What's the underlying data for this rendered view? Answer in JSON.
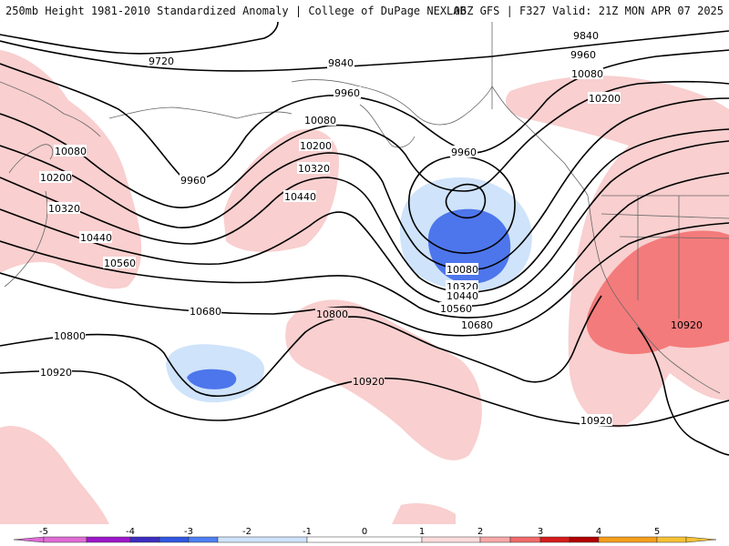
{
  "header": {
    "left_text": "250mb Height 1981-2010 Standardized Anomaly | College of DuPage NEXLAB",
    "right_text": "06Z GFS | F327 Valid: 21Z MON APR 07 2025"
  },
  "map": {
    "contour_labels": [
      "9720",
      "9840",
      "9960",
      "10080",
      "10200",
      "10320",
      "10440",
      "10560",
      "10680",
      "10800",
      "10920"
    ],
    "colors": {
      "pos_light": "#f9cfcf",
      "pos_mid": "#f47b7b",
      "neg_light": "#cfe3fa",
      "neg_mid": "#4d76ec",
      "contour": "#000000",
      "coast": "#666666"
    }
  },
  "colorbar": {
    "labels": [
      "-5",
      "-4",
      "-3",
      "-2",
      "-1",
      "0",
      "1",
      "2",
      "3",
      "4",
      "5"
    ],
    "colors": [
      "#e06bd6",
      "#9c16c9",
      "#3b2cc0",
      "#2f56e0",
      "#4d80f2",
      "#cfe3fa",
      "#ffffff",
      "#fcdcdc",
      "#f9a8a8",
      "#f16a6a",
      "#d61a1a",
      "#b20000",
      "#f59e1a",
      "#f7c235"
    ]
  }
}
